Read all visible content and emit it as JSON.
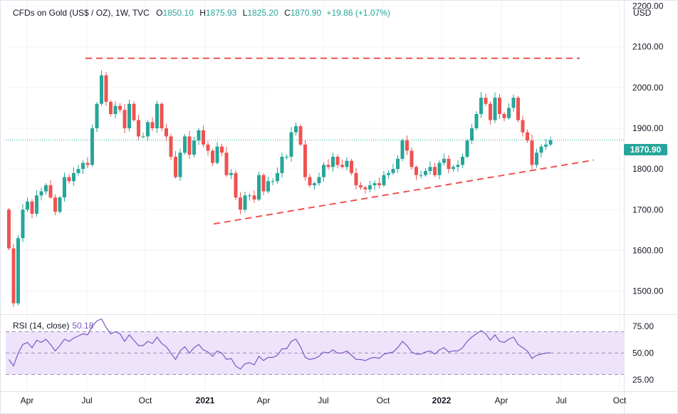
{
  "header": {
    "symbol": "CFDs on Gold (US$ / OZ), 1W, TVC",
    "o_label": "O",
    "o_value": "1850.10",
    "h_label": "H",
    "h_value": "1875.93",
    "l_label": "L",
    "l_value": "1825.20",
    "c_label": "C",
    "c_value": "1870.90",
    "change": "+19.86 (+1.07%)"
  },
  "currency": "USD",
  "last_price_label": "1870.90",
  "rsi": {
    "label": "RSI (14, close)",
    "value": "50.18"
  },
  "colors": {
    "up": "#26a69a",
    "down": "#ef5350",
    "rsi_line": "#7e57c2",
    "rsi_band": "#ede3fb",
    "trend": "#ef5350"
  },
  "chart_data": {
    "type": "candlestick",
    "title": "CFDs on Gold (US$ / OZ), 1W, TVC",
    "price_axis_ticks": [
      "2200.00",
      "2100.00",
      "2000.00",
      "1900.00",
      "1800.00",
      "1700.00",
      "1600.00",
      "1500.00"
    ],
    "price_range": [
      1445,
      2215
    ],
    "time_axis_ticks": [
      "Apr",
      "Jul",
      "Oct",
      "2021",
      "Apr",
      "Jul",
      "Oct",
      "2022",
      "Apr",
      "Jul",
      "Oct"
    ],
    "rsi_axis_ticks": [
      "75.00",
      "50.00",
      "25.00"
    ],
    "rsi_range": [
      15,
      85
    ],
    "close": [
      1605,
      1470,
      1630,
      1700,
      1720,
      1690,
      1735,
      1745,
      1760,
      1730,
      1695,
      1730,
      1780,
      1770,
      1790,
      1800,
      1815,
      1810,
      1900,
      1960,
      2030,
      1965,
      1935,
      1955,
      1945,
      1900,
      1960,
      1920,
      1880,
      1880,
      1915,
      1900,
      1960,
      1900,
      1880,
      1830,
      1780,
      1840,
      1880,
      1835,
      1870,
      1895,
      1860,
      1845,
      1815,
      1855,
      1840,
      1785,
      1790,
      1730,
      1700,
      1735,
      1735,
      1725,
      1785,
      1745,
      1770,
      1770,
      1790,
      1830,
      1830,
      1890,
      1905,
      1860,
      1780,
      1760,
      1765,
      1780,
      1810,
      1805,
      1830,
      1810,
      1805,
      1820,
      1790,
      1760,
      1755,
      1750,
      1760,
      1765,
      1760,
      1785,
      1790,
      1800,
      1825,
      1870,
      1845,
      1805,
      1785,
      1785,
      1795,
      1805,
      1785,
      1815,
      1825,
      1800,
      1805,
      1810,
      1830,
      1870,
      1900,
      1935,
      1975,
      1960,
      1920,
      1975,
      1935,
      1925,
      1950,
      1975,
      1920,
      1890,
      1870,
      1810,
      1840,
      1855,
      1860,
      1870.9
    ],
    "rsi_values": [
      44,
      38,
      50,
      58,
      60,
      55,
      62,
      60,
      63,
      58,
      52,
      57,
      63,
      61,
      64,
      66,
      68,
      67,
      75,
      80,
      82,
      74,
      68,
      70,
      68,
      61,
      67,
      62,
      57,
      57,
      61,
      59,
      65,
      59,
      56,
      50,
      44,
      52,
      56,
      50,
      55,
      58,
      53,
      51,
      47,
      52,
      50,
      44,
      45,
      38,
      35,
      40,
      41,
      39,
      47,
      43,
      46,
      46,
      48,
      54,
      54,
      61,
      63,
      56,
      46,
      44,
      45,
      47,
      51,
      50,
      53,
      50,
      50,
      52,
      48,
      44,
      44,
      43,
      45,
      46,
      45,
      49,
      50,
      51,
      55,
      61,
      57,
      51,
      49,
      49,
      51,
      52,
      49,
      53,
      55,
      51,
      52,
      52,
      55,
      61,
      65,
      68,
      71,
      68,
      62,
      67,
      61,
      60,
      63,
      65,
      58,
      55,
      52,
      45,
      48,
      49,
      50,
      50.18
    ],
    "trendlines": [
      {
        "kind": "horizontal resistance",
        "price": 2072
      },
      {
        "kind": "rising support",
        "from_price": 1665,
        "to_price": 1822
      }
    ]
  }
}
